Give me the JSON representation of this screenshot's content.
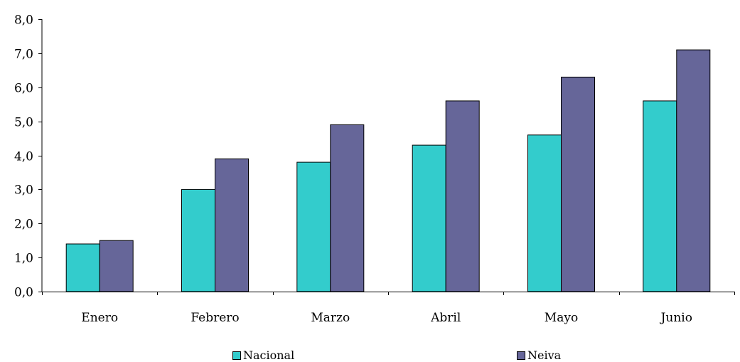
{
  "chart_data": {
    "type": "bar",
    "categories": [
      "Enero",
      "Febrero",
      "Marzo",
      "Abril",
      "Mayo",
      "Junio"
    ],
    "series": [
      {
        "name": "Nacional",
        "color": "#33CCCC",
        "values": [
          1.4,
          3.0,
          3.8,
          4.3,
          4.6,
          5.6
        ]
      },
      {
        "name": "Neiva",
        "color": "#666699",
        "values": [
          1.5,
          3.9,
          4.9,
          5.6,
          6.3,
          7.1
        ]
      }
    ],
    "title": "",
    "xlabel": "",
    "ylabel": "",
    "ylim": [
      0,
      8
    ],
    "yticks": [
      "0,0",
      "1,0",
      "2,0",
      "3,0",
      "4,0",
      "5,0",
      "6,0",
      "7,0",
      "8,0"
    ],
    "grid": false,
    "legend": "bottom"
  }
}
